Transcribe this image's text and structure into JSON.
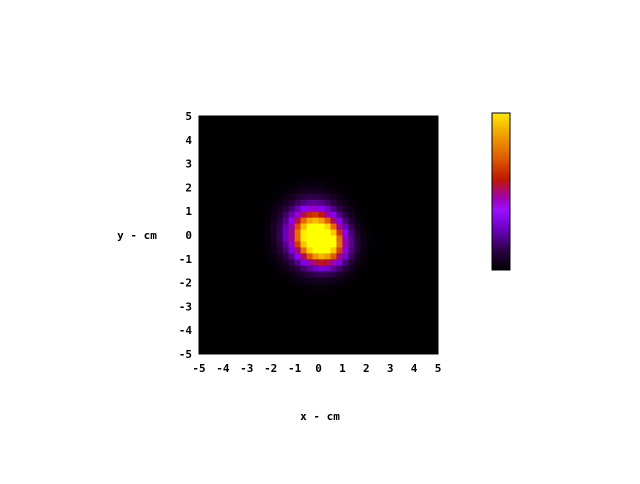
{
  "chart_data": {
    "type": "heatmap",
    "title": "",
    "xlabel": "x - cm",
    "ylabel": "y - cm",
    "xlim": [
      -5,
      5
    ],
    "ylim": [
      -5,
      5
    ],
    "x_ticks": [
      "-5",
      "-4",
      "-3",
      "-2",
      "-1",
      "0",
      "1",
      "2",
      "3",
      "4",
      "5"
    ],
    "y_ticks": [
      "-5",
      "-4",
      "-3",
      "-2",
      "-1",
      "0",
      "1",
      "2",
      "3",
      "4",
      "5"
    ],
    "grid": false,
    "colorbar": "right",
    "colormap": [
      "#000000",
      "#2a0040",
      "#5a0090",
      "#8a00ff",
      "#a000a0",
      "#c01800",
      "#e06000",
      "#f09000",
      "#ffd000",
      "#ffff00"
    ],
    "blobs": [
      {
        "cx": -0.25,
        "cy": 0.1,
        "sx": 0.7,
        "sy": 0.75,
        "amp": 1.0
      },
      {
        "cx": 0.35,
        "cy": -0.4,
        "sx": 0.6,
        "sy": 0.6,
        "amp": 0.75
      }
    ],
    "grid_resolution": 0.5
  }
}
